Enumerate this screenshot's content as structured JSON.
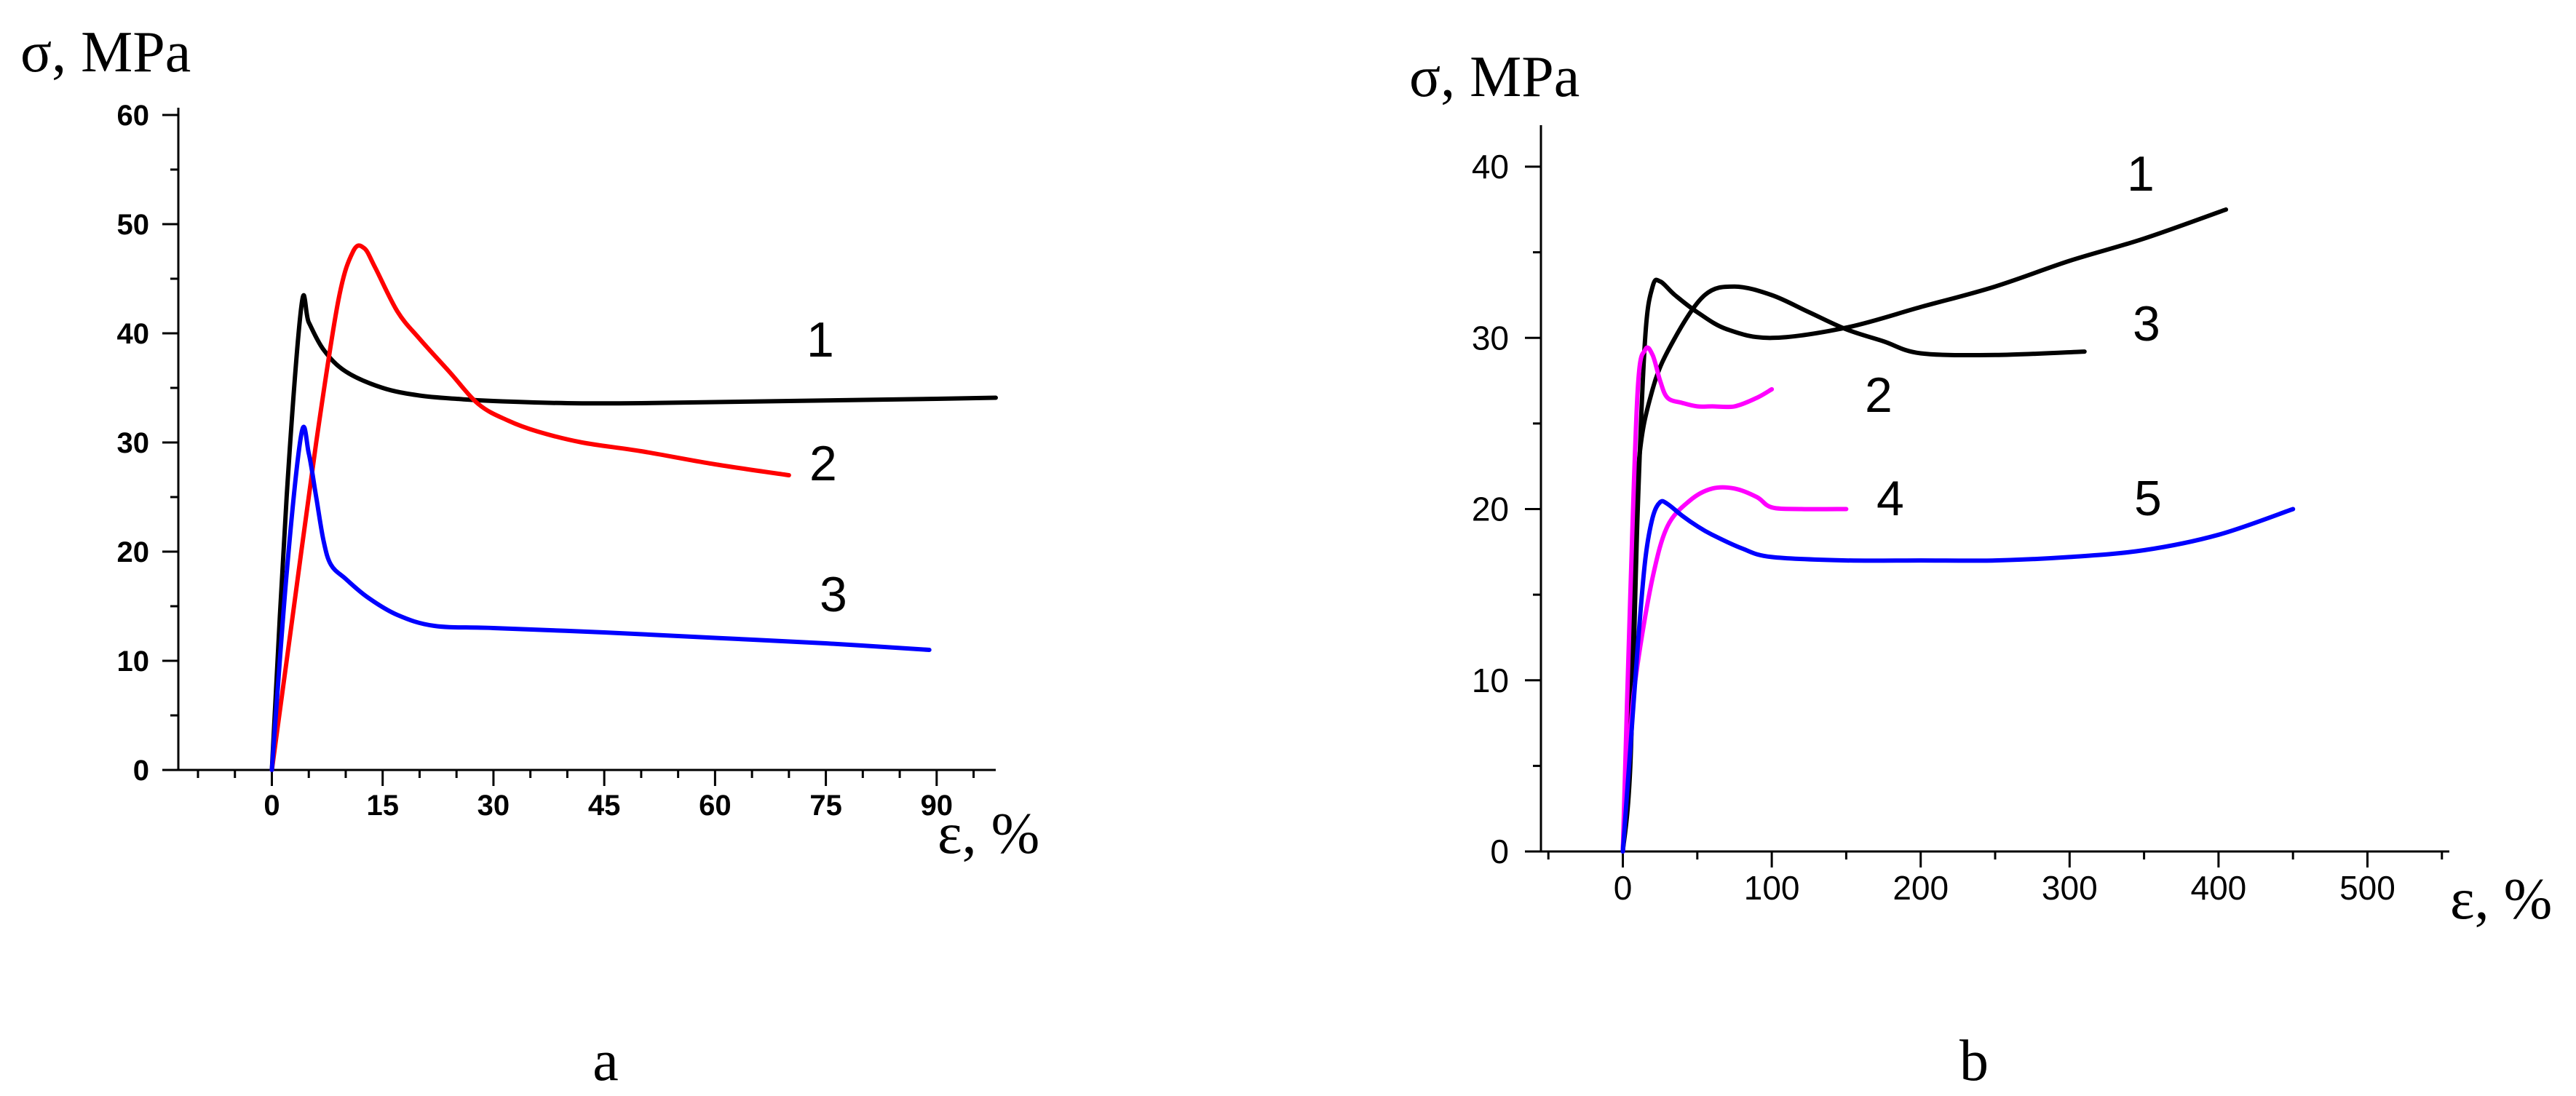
{
  "chart_data": [
    {
      "type": "line",
      "panel_label": "a",
      "ylabel": "σ, MPa",
      "xlabel": "ε, %",
      "xlim": [
        -10,
        98
      ],
      "ylim": [
        0,
        60
      ],
      "x_ticks": [
        0,
        15,
        30,
        45,
        60,
        75,
        90
      ],
      "y_ticks": [
        0,
        10,
        20,
        30,
        40,
        50,
        60
      ],
      "series": [
        {
          "name": "1",
          "color": "#000000",
          "x": [
            0,
            2,
            4,
            5,
            7,
            10,
            15,
            20,
            25,
            30,
            40,
            50,
            60,
            70,
            80,
            90,
            98
          ],
          "y": [
            0,
            25,
            42.5,
            41,
            38.5,
            36.5,
            35,
            34.3,
            34,
            33.8,
            33.6,
            33.6,
            33.7,
            33.8,
            33.9,
            34,
            34.1
          ]
        },
        {
          "name": "2",
          "color": "#ff0000",
          "x": [
            0,
            3,
            6,
            9,
            11,
            12.5,
            14,
            17,
            20,
            24,
            28,
            32,
            36,
            42,
            50,
            60,
            70
          ],
          "y": [
            0,
            15,
            30,
            43,
            47.5,
            47.8,
            46,
            42,
            39.5,
            36.5,
            33.5,
            32,
            31,
            30,
            29.2,
            28,
            27
          ]
        },
        {
          "name": "3",
          "color": "#0000ff",
          "x": [
            0,
            2,
            4,
            5,
            6,
            7,
            8,
            10,
            13,
            17,
            22,
            30,
            45,
            60,
            75,
            89
          ],
          "y": [
            0,
            18,
            30.8,
            29,
            25,
            21,
            18.8,
            17.5,
            15.8,
            14.2,
            13.2,
            13,
            12.6,
            12.1,
            11.6,
            11
          ]
        }
      ]
    },
    {
      "type": "line",
      "panel_label": "b",
      "ylabel": "σ, MPa",
      "xlabel": "ε, %",
      "xlim": [
        -55,
        555
      ],
      "ylim": [
        0,
        42
      ],
      "x_ticks": [
        0,
        100,
        200,
        300,
        400,
        500
      ],
      "y_ticks": [
        0,
        10,
        20,
        30,
        40
      ],
      "series": [
        {
          "name": "1",
          "color": "#000000",
          "x": [
            0,
            5,
            10,
            15,
            20,
            25,
            35,
            50,
            70,
            100,
            150,
            200,
            250,
            300,
            350,
            405
          ],
          "y": [
            0,
            5,
            20,
            30,
            33,
            33.3,
            32.5,
            31.5,
            30.5,
            30,
            30.6,
            31.8,
            33,
            34.5,
            35.8,
            37.5
          ]
        },
        {
          "name": "3",
          "color": "#000000",
          "x": [
            0,
            5,
            10,
            20,
            35,
            55,
            75,
            100,
            125,
            150,
            175,
            200,
            250,
            310
          ],
          "y": [
            0,
            10,
            22,
            27,
            30,
            32.5,
            33,
            32.5,
            31.5,
            30.5,
            29.8,
            29.1,
            29,
            29.2
          ]
        },
        {
          "name": "2",
          "color": "#ff00ff",
          "x": [
            0,
            5,
            10,
            15,
            20,
            25,
            30,
            40,
            50,
            60,
            75,
            90,
            100
          ],
          "y": [
            0,
            15,
            27,
            29.3,
            29,
            27.5,
            26.5,
            26.2,
            26,
            26,
            26,
            26.5,
            27
          ]
        },
        {
          "name": "4",
          "color": "#ff00ff",
          "x": [
            0,
            5,
            10,
            20,
            30,
            45,
            60,
            75,
            90,
            100,
            120,
            150
          ],
          "y": [
            0,
            7,
            11,
            16,
            19,
            20.5,
            21.2,
            21.2,
            20.7,
            20.1,
            20,
            20
          ]
        },
        {
          "name": "5",
          "color": "#0000ff",
          "x": [
            0,
            5,
            10,
            15,
            20,
            25,
            30,
            40,
            50,
            60,
            80,
            100,
            150,
            200,
            250,
            300,
            350,
            400,
            450
          ],
          "y": [
            0,
            6,
            12,
            17,
            19.5,
            20.4,
            20.3,
            19.6,
            19,
            18.5,
            17.7,
            17.2,
            17.0,
            17.0,
            17.0,
            17.2,
            17.6,
            18.5,
            20
          ]
        }
      ]
    }
  ]
}
